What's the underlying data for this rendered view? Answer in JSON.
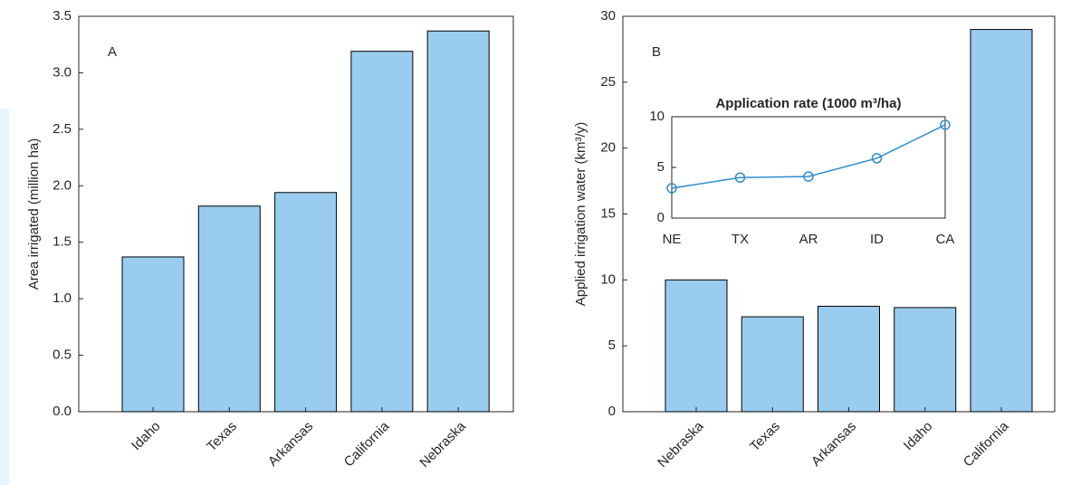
{
  "chart_data": [
    {
      "type": "bar",
      "annotation": "A",
      "ylabel": "Area irrigated (million ha)",
      "categories": [
        "Idaho",
        "Texas",
        "Arkansas",
        "California",
        "Nebraska"
      ],
      "values": [
        1.37,
        1.82,
        1.94,
        3.19,
        3.37
      ],
      "color": "#99ccee",
      "ylim": [
        0,
        3.5
      ],
      "yticks": [
        {
          "value": 0,
          "label": "0.0"
        },
        0.5,
        {
          "value": 1,
          "label": "1.0"
        },
        1.5,
        {
          "value": 2,
          "label": "2.0"
        },
        2.5,
        {
          "value": 3,
          "label": "3.0"
        },
        3.5
      ]
    },
    {
      "type": "bar",
      "annotation": "B",
      "ylabel": "Applied irrigation water (km³/y)",
      "categories": [
        "Nebraska",
        "Texas",
        "Arkansas",
        "Idaho",
        "California"
      ],
      "values": [
        10.0,
        7.2,
        8.0,
        7.9,
        29.0
      ],
      "color": "#99ccee",
      "ylim": [
        0,
        30
      ],
      "yticks": [
        0,
        5,
        10,
        15,
        20,
        25,
        30
      ]
    },
    {
      "type": "line",
      "title": "Application rate (1000 m³/ha)",
      "categories": [
        "NE",
        "TX",
        "AR",
        "ID",
        "CA"
      ],
      "values": [
        2.95,
        4.0,
        4.1,
        5.9,
        9.2
      ],
      "color": "#2f8ccc",
      "ylim": [
        0,
        10
      ],
      "yticks": [
        0,
        5,
        10
      ]
    }
  ]
}
